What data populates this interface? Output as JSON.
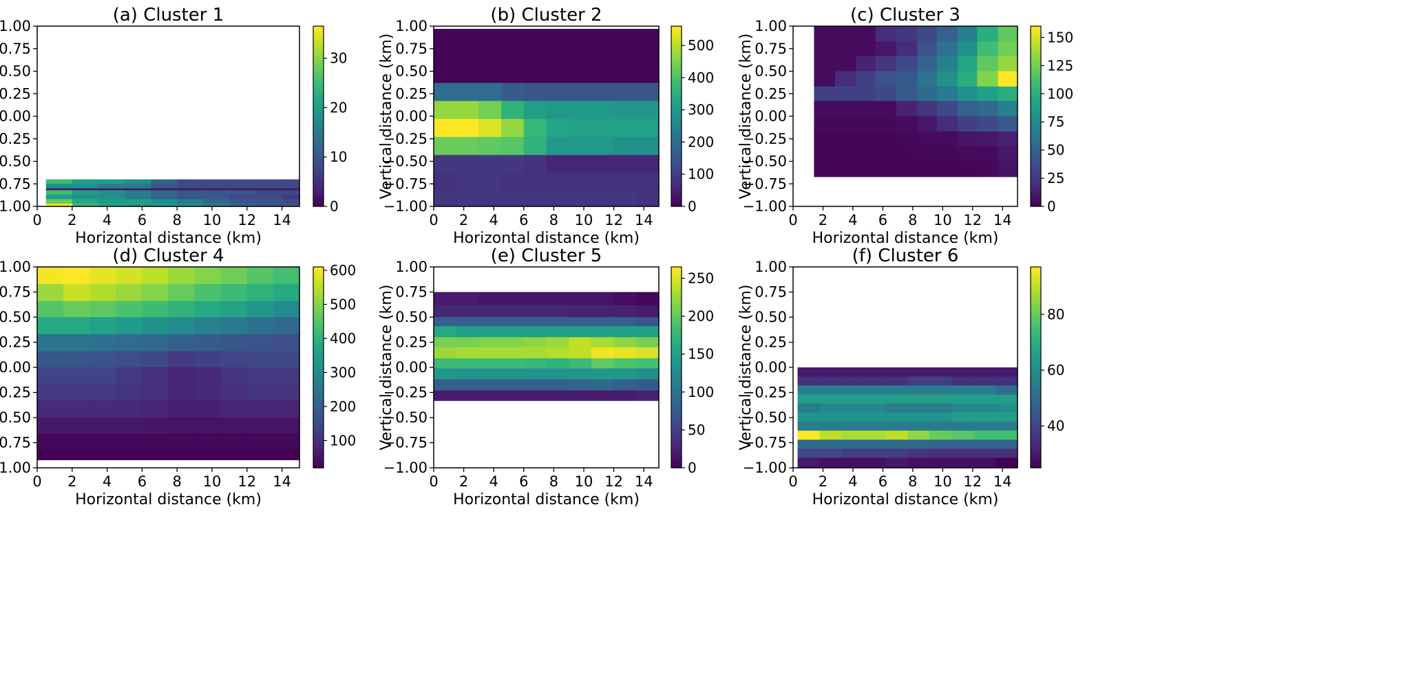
{
  "chart_data": [
    {
      "type": "heatmap",
      "title": "(a) Cluster 1",
      "xlabel": "Horizontal distance (km)",
      "ylabel": "Vertical distance (km)",
      "xlim": [
        0,
        15
      ],
      "ylim": [
        -1,
        1
      ],
      "xticks": [
        "0",
        "2",
        "4",
        "6",
        "8",
        "10",
        "12",
        "14"
      ],
      "yticks": [
        "1.00",
        "0.75",
        "0.50",
        "0.25",
        "0.00",
        "−0.25",
        "−0.50",
        "−0.75",
        "−1.00"
      ],
      "colorbar": {
        "min": 0,
        "max": 36.5,
        "ticks": [
          0,
          10,
          20,
          30
        ]
      },
      "x_edges": [
        0.5,
        2,
        3.5,
        5,
        6.5,
        8,
        9.5,
        11,
        12.5,
        14,
        15
      ],
      "y_edges": [
        -0.7,
        -0.75,
        -0.8,
        -0.82,
        -0.87,
        -0.92,
        -0.97,
        -1.0
      ],
      "values": [
        [
          25,
          20,
          20,
          18,
          12,
          8,
          8,
          8,
          8,
          8
        ],
        [
          18,
          18,
          15,
          15,
          10,
          8,
          8,
          8,
          8,
          8
        ],
        [
          2,
          2,
          2,
          2,
          2,
          2,
          2,
          2,
          2,
          2
        ],
        [
          25,
          20,
          18,
          15,
          12,
          10,
          10,
          10,
          8,
          8
        ],
        [
          20,
          18,
          18,
          15,
          12,
          10,
          10,
          8,
          8,
          6
        ],
        [
          28,
          22,
          20,
          20,
          18,
          15,
          12,
          10,
          10,
          8
        ],
        [
          36,
          25,
          22,
          20,
          20,
          18,
          15,
          12,
          10,
          10
        ]
      ]
    },
    {
      "type": "heatmap",
      "title": "(b) Cluster 2",
      "xlabel": "Horizontal distance (km)",
      "ylabel": "Vertical distance (km)",
      "xlim": [
        0,
        15
      ],
      "ylim": [
        -1,
        1
      ],
      "xticks": [
        "0",
        "2",
        "4",
        "6",
        "8",
        "10",
        "12",
        "14"
      ],
      "yticks": [
        "1.00",
        "0.75",
        "0.50",
        "0.25",
        "0.00",
        "−0.25",
        "−0.50",
        "−0.75",
        "−1.00"
      ],
      "colorbar": {
        "min": 0,
        "max": 560,
        "ticks": [
          0,
          100,
          200,
          300,
          400,
          500
        ]
      },
      "x_edges": [
        0,
        1.5,
        3,
        4.5,
        6,
        7.5,
        9,
        10.5,
        12,
        13.5,
        15
      ],
      "y_edges": [
        0.97,
        0.77,
        0.57,
        0.37,
        0.17,
        -0.03,
        -0.23,
        -0.43,
        -0.63,
        -0.83,
        -1.0
      ],
      "values": [
        [
          5,
          5,
          5,
          5,
          5,
          5,
          5,
          5,
          5,
          5
        ],
        [
          5,
          5,
          5,
          5,
          5,
          5,
          5,
          5,
          5,
          5
        ],
        [
          5,
          5,
          5,
          5,
          5,
          5,
          5,
          5,
          5,
          5
        ],
        [
          200,
          200,
          200,
          160,
          150,
          150,
          150,
          150,
          150,
          150
        ],
        [
          470,
          470,
          440,
          360,
          310,
          300,
          300,
          300,
          290,
          290
        ],
        [
          560,
          560,
          530,
          470,
          370,
          330,
          320,
          320,
          320,
          320
        ],
        [
          430,
          430,
          420,
          410,
          360,
          300,
          300,
          300,
          280,
          280
        ],
        [
          90,
          90,
          90,
          90,
          80,
          60,
          60,
          60,
          60,
          60
        ],
        [
          80,
          90,
          90,
          80,
          80,
          80,
          80,
          80,
          80,
          80
        ],
        [
          90,
          90,
          90,
          90,
          90,
          90,
          90,
          90,
          90,
          80
        ]
      ]
    },
    {
      "type": "heatmap",
      "title": "(c) Cluster 3",
      "xlabel": "Horizontal distance (km)",
      "ylabel": "Vertical distance (km)",
      "xlim": [
        0,
        15
      ],
      "ylim": [
        -1,
        1
      ],
      "xticks": [
        "0",
        "2",
        "4",
        "6",
        "8",
        "10",
        "12",
        "14"
      ],
      "yticks": [
        "1.00",
        "0.75",
        "0.50",
        "0.25",
        "0.00",
        "−0.25",
        "−0.50",
        "−0.75",
        "−1.00"
      ],
      "colorbar": {
        "min": 0,
        "max": 160,
        "ticks": [
          0,
          25,
          50,
          75,
          100,
          125,
          150
        ]
      },
      "x_edges": [
        1.4,
        2.8,
        4.2,
        5.5,
        6.9,
        8.3,
        9.6,
        11,
        12.3,
        13.7,
        15
      ],
      "y_edges": [
        1.0,
        0.83,
        0.67,
        0.5,
        0.33,
        0.17,
        0.0,
        -0.17,
        -0.33,
        -0.5,
        -0.67
      ],
      "values": [
        [
          5,
          5,
          5,
          20,
          25,
          35,
          50,
          70,
          100,
          120
        ],
        [
          5,
          5,
          5,
          10,
          20,
          40,
          60,
          80,
          110,
          125
        ],
        [
          5,
          5,
          15,
          25,
          35,
          50,
          70,
          95,
          120,
          135
        ],
        [
          5,
          20,
          30,
          40,
          45,
          60,
          80,
          100,
          130,
          160
        ],
        [
          30,
          30,
          30,
          35,
          45,
          55,
          65,
          80,
          90,
          100
        ],
        [
          5,
          5,
          5,
          5,
          15,
          25,
          35,
          50,
          55,
          70
        ],
        [
          3,
          3,
          3,
          3,
          5,
          10,
          20,
          30,
          35,
          45
        ],
        [
          2,
          2,
          2,
          2,
          3,
          5,
          5,
          8,
          10,
          15
        ],
        [
          2,
          2,
          2,
          2,
          2,
          3,
          3,
          5,
          5,
          10
        ],
        [
          2,
          2,
          2,
          2,
          2,
          2,
          2,
          2,
          3,
          8
        ]
      ]
    },
    {
      "type": "heatmap",
      "title": "(d) Cluster 4",
      "xlabel": "Horizontal distance (km)",
      "ylabel": "Vertical distance (km)",
      "xlim": [
        0,
        15
      ],
      "ylim": [
        -1,
        1
      ],
      "xticks": [
        "0",
        "2",
        "4",
        "6",
        "8",
        "10",
        "12",
        "14"
      ],
      "yticks": [
        "1.00",
        "0.75",
        "0.50",
        "0.25",
        "0.00",
        "−0.25",
        "−0.50",
        "−0.75",
        "−1.00"
      ],
      "colorbar": {
        "min": 20,
        "max": 610,
        "ticks": [
          100,
          200,
          300,
          400,
          500,
          600
        ]
      },
      "x_edges": [
        0,
        1.5,
        3,
        4.5,
        6,
        7.5,
        9,
        10.5,
        12,
        13.5,
        15
      ],
      "y_edges": [
        1.0,
        0.83,
        0.66,
        0.5,
        0.33,
        0.16,
        0.0,
        -0.16,
        -0.33,
        -0.5,
        -0.66,
        -0.83,
        -0.92
      ],
      "values": [
        [
          600,
          610,
          590,
          570,
          550,
          520,
          500,
          480,
          450,
          430
        ],
        [
          520,
          560,
          540,
          520,
          500,
          470,
          440,
          420,
          400,
          380
        ],
        [
          450,
          470,
          460,
          440,
          420,
          400,
          380,
          360,
          330,
          300
        ],
        [
          380,
          380,
          360,
          340,
          320,
          300,
          280,
          260,
          240,
          220
        ],
        [
          250,
          250,
          240,
          230,
          220,
          200,
          190,
          180,
          170,
          160
        ],
        [
          180,
          180,
          170,
          160,
          150,
          120,
          130,
          140,
          150,
          150
        ],
        [
          140,
          140,
          140,
          120,
          100,
          80,
          90,
          110,
          120,
          120
        ],
        [
          120,
          120,
          120,
          110,
          100,
          80,
          90,
          100,
          110,
          110
        ],
        [
          90,
          90,
          90,
          90,
          80,
          70,
          70,
          80,
          80,
          80
        ],
        [
          60,
          60,
          60,
          60,
          55,
          50,
          50,
          50,
          50,
          50
        ],
        [
          30,
          30,
          30,
          30,
          30,
          30,
          30,
          30,
          30,
          30
        ],
        [
          20,
          20,
          20,
          20,
          20,
          20,
          20,
          20,
          20,
          20
        ]
      ]
    },
    {
      "type": "heatmap",
      "title": "(e) Cluster 5",
      "xlabel": "Horizontal distance (km)",
      "ylabel": "Vertical distance (km)",
      "xlim": [
        0,
        15
      ],
      "ylim": [
        -1,
        1
      ],
      "xticks": [
        "0",
        "2",
        "4",
        "6",
        "8",
        "10",
        "12",
        "14"
      ],
      "yticks": [
        "1.00",
        "0.75",
        "0.50",
        "0.25",
        "0.00",
        "−0.25",
        "−0.50",
        "−0.75",
        "−1.00"
      ],
      "colorbar": {
        "min": 0,
        "max": 265,
        "ticks": [
          0,
          50,
          100,
          150,
          200,
          250
        ]
      },
      "x_edges": [
        0,
        1.5,
        3,
        4.5,
        6,
        7.5,
        9,
        10.5,
        12,
        13.5,
        15
      ],
      "y_edges": [
        0.75,
        0.62,
        0.5,
        0.41,
        0.3,
        0.2,
        0.09,
        -0.01,
        -0.12,
        -0.23,
        -0.33
      ],
      "values": [
        [
          20,
          20,
          15,
          15,
          15,
          15,
          15,
          15,
          10,
          5
        ],
        [
          30,
          30,
          30,
          30,
          30,
          30,
          25,
          25,
          25,
          20
        ],
        [
          80,
          80,
          80,
          80,
          80,
          80,
          80,
          80,
          80,
          70
        ],
        [
          160,
          150,
          150,
          150,
          150,
          150,
          150,
          150,
          150,
          150
        ],
        [
          210,
          210,
          215,
          215,
          220,
          225,
          240,
          230,
          220,
          210
        ],
        [
          225,
          230,
          230,
          230,
          230,
          235,
          240,
          260,
          255,
          250
        ],
        [
          180,
          180,
          180,
          180,
          175,
          170,
          180,
          200,
          190,
          185
        ],
        [
          140,
          135,
          135,
          135,
          135,
          135,
          135,
          140,
          140,
          130
        ],
        [
          80,
          80,
          80,
          80,
          80,
          80,
          85,
          90,
          80,
          75
        ],
        [
          20,
          20,
          20,
          20,
          20,
          20,
          20,
          20,
          20,
          25
        ]
      ]
    },
    {
      "type": "heatmap",
      "title": "(f) Cluster 6",
      "xlabel": "Horizontal distance (km)",
      "ylabel": "Vertical distance (km)",
      "xlim": [
        0,
        15
      ],
      "ylim": [
        -1,
        1
      ],
      "xticks": [
        "0",
        "2",
        "4",
        "6",
        "8",
        "10",
        "12",
        "14"
      ],
      "yticks": [
        "1.00",
        "0.75",
        "0.50",
        "0.25",
        "0.00",
        "−0.25",
        "−0.50",
        "−0.75",
        "−1.00"
      ],
      "colorbar": {
        "min": 25,
        "max": 97,
        "ticks": [
          40,
          60,
          80
        ]
      },
      "x_edges": [
        0.3,
        1.77,
        3.24,
        4.71,
        6.18,
        7.65,
        9.12,
        10.59,
        12.06,
        13.53,
        15
      ],
      "y_edges": [
        0,
        -0.09,
        -0.18,
        -0.27,
        -0.36,
        -0.45,
        -0.54,
        -0.63,
        -0.72,
        -0.81,
        -0.9,
        -1.0
      ],
      "values": [
        [
          30,
          30,
          30,
          30,
          30,
          30,
          30,
          30,
          30,
          30
        ],
        [
          35,
          35,
          35,
          35,
          35,
          38,
          38,
          35,
          35,
          35
        ],
        [
          55,
          55,
          55,
          55,
          55,
          55,
          55,
          55,
          55,
          50
        ],
        [
          65,
          65,
          65,
          65,
          65,
          65,
          65,
          65,
          65,
          65
        ],
        [
          55,
          58,
          58,
          58,
          55,
          55,
          55,
          58,
          58,
          60
        ],
        [
          62,
          62,
          62,
          62,
          62,
          62,
          62,
          65,
          65,
          65
        ],
        [
          55,
          55,
          55,
          55,
          55,
          55,
          55,
          55,
          55,
          55
        ],
        [
          97,
          90,
          88,
          88,
          90,
          85,
          80,
          78,
          75,
          75
        ],
        [
          50,
          50,
          50,
          50,
          50,
          50,
          48,
          48,
          48,
          48
        ],
        [
          40,
          40,
          38,
          38,
          38,
          36,
          35,
          35,
          35,
          35
        ],
        [
          30,
          28,
          28,
          28,
          30,
          28,
          28,
          28,
          28,
          25
        ]
      ]
    }
  ]
}
